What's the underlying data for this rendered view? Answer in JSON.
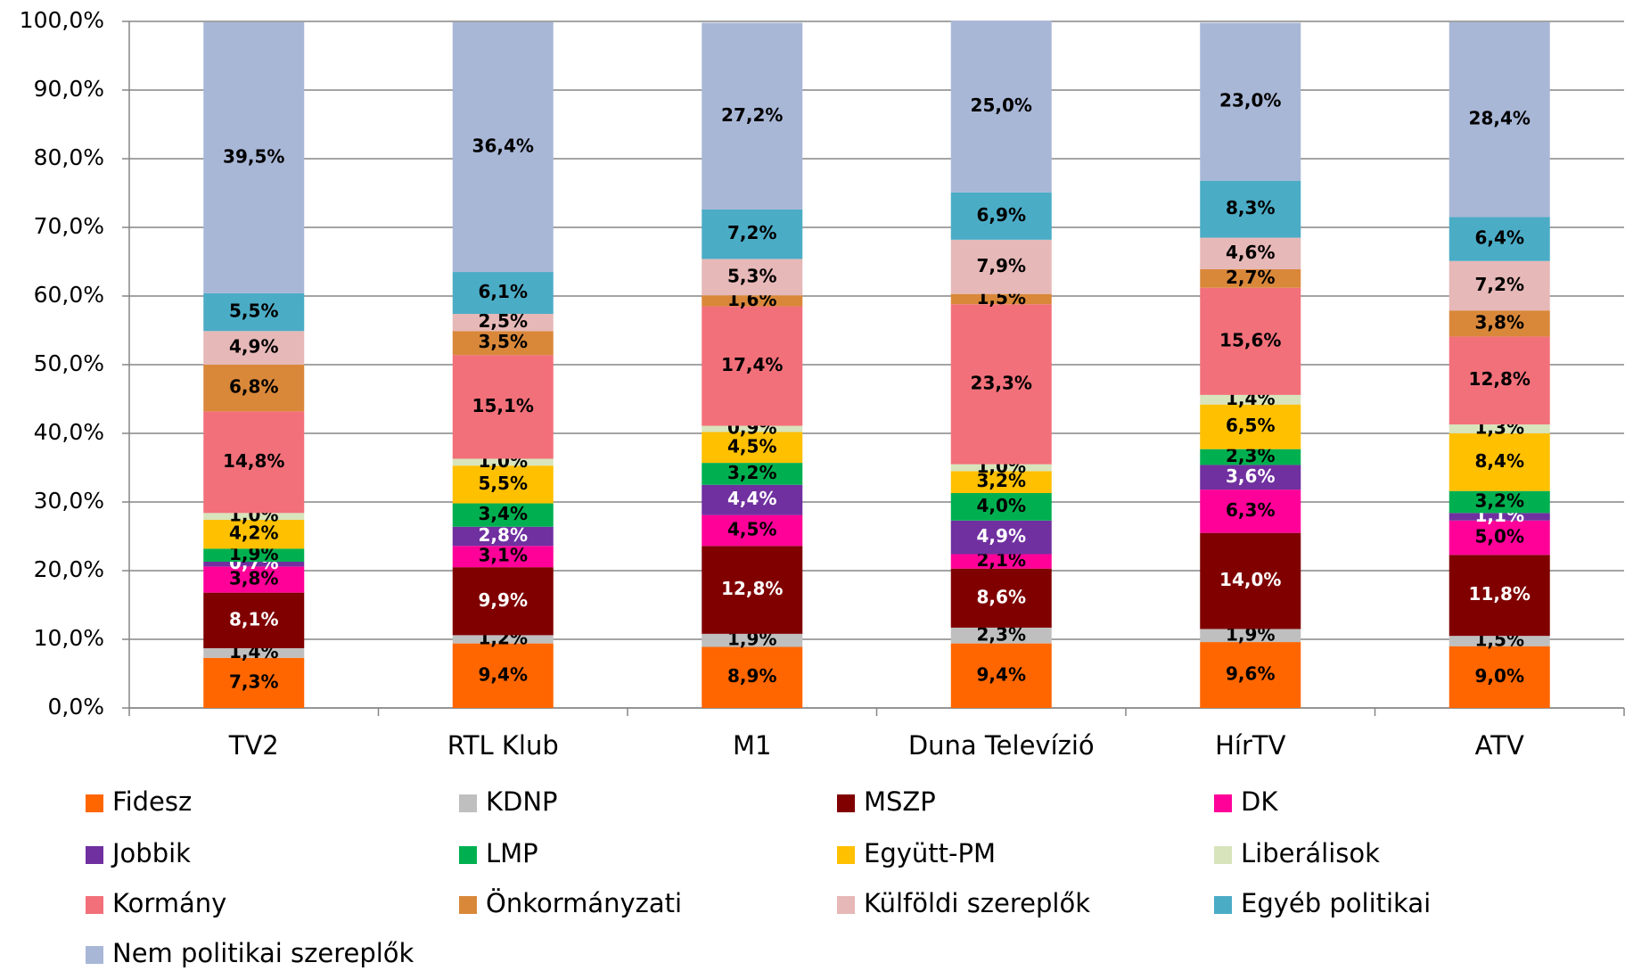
{
  "chart_data": {
    "type": "stacked_bar",
    "categories": [
      "TV2",
      "RTL Klub",
      "M1",
      "Duna Televízió",
      "HírTV",
      "ATV"
    ],
    "ylim": [
      0,
      100
    ],
    "yticks": [
      {
        "value": 0,
        "label": "0,0%"
      },
      {
        "value": 10,
        "label": "10,0%"
      },
      {
        "value": 20,
        "label": "20,0%"
      },
      {
        "value": 30,
        "label": "30,0%"
      },
      {
        "value": 40,
        "label": "40,0%"
      },
      {
        "value": 50,
        "label": "50,0%"
      },
      {
        "value": 60,
        "label": "60,0%"
      },
      {
        "value": 70,
        "label": "70,0%"
      },
      {
        "value": 80,
        "label": "80,0%"
      },
      {
        "value": 90,
        "label": "90,0%"
      },
      {
        "value": 100,
        "label": "100,0%"
      }
    ],
    "grid": true,
    "legend": "bottom",
    "series": [
      {
        "name": "Fidesz",
        "color": "#ff6600",
        "values": [
          7.3,
          9.4,
          8.9,
          9.4,
          9.6,
          9.0
        ],
        "value_labels": [
          "7,3%",
          "9,4%",
          "8,9%",
          "9,4%",
          "9,6%",
          "9,0%"
        ]
      },
      {
        "name": "KDNP",
        "color": "#bfbfbf",
        "values": [
          1.4,
          1.2,
          1.9,
          2.3,
          1.9,
          1.5
        ],
        "value_labels": [
          "1,4%",
          "1,2%",
          "1,9%",
          "2,3%",
          "1,9%",
          "1,5%"
        ]
      },
      {
        "name": "MSZP",
        "color": "#800000",
        "values": [
          8.1,
          9.9,
          12.8,
          8.6,
          14.0,
          11.8
        ],
        "value_labels": [
          "8,1%",
          "9,9%",
          "12,8%",
          "8,6%",
          "14,0%",
          "11,8%"
        ]
      },
      {
        "name": "DK",
        "color": "#ff0099",
        "values": [
          3.8,
          3.1,
          4.5,
          2.1,
          6.3,
          5.0
        ],
        "value_labels": [
          "3,8%",
          "3,1%",
          "4,5%",
          "2,1%",
          "6,3%",
          "5,0%"
        ]
      },
      {
        "name": "Jobbik",
        "color": "#7030a0",
        "values": [
          0.7,
          2.8,
          4.4,
          4.9,
          3.6,
          1.1
        ],
        "value_labels": [
          "0,7%",
          "2,8%",
          "4,4%",
          "4,9%",
          "3,6%",
          "1,1%"
        ]
      },
      {
        "name": "LMP",
        "color": "#00b050",
        "values": [
          1.9,
          3.4,
          3.2,
          4.0,
          2.3,
          3.2
        ],
        "value_labels": [
          "1,9%",
          "3,4%",
          "3,2%",
          "4,0%",
          "2,3%",
          "3,2%"
        ]
      },
      {
        "name": "Együtt-PM",
        "color": "#ffc000",
        "values": [
          4.2,
          5.5,
          4.5,
          3.2,
          6.5,
          8.4
        ],
        "value_labels": [
          "4,2%",
          "5,5%",
          "4,5%",
          "3,2%",
          "6,5%",
          "8,4%"
        ]
      },
      {
        "name": "Liberálisok",
        "color": "#d8e4bc",
        "values": [
          1.0,
          1.0,
          0.9,
          1.0,
          1.4,
          1.3
        ],
        "value_labels": [
          "1,0%",
          "1,0%",
          "0,9%",
          "1,0%",
          "1,4%",
          "1,3%"
        ]
      },
      {
        "name": "Kormány",
        "color": "#f2707a",
        "values": [
          14.8,
          15.1,
          17.4,
          23.3,
          15.6,
          12.8
        ],
        "value_labels": [
          "14,8%",
          "15,1%",
          "17,4%",
          "23,3%",
          "15,6%",
          "12,8%"
        ]
      },
      {
        "name": "Önkormányzati",
        "color": "#d9883a",
        "values": [
          6.8,
          3.5,
          1.6,
          1.5,
          2.7,
          3.8
        ],
        "value_labels": [
          "6,8%",
          "3,5%",
          "1,6%",
          "1,5%",
          "2,7%",
          "3,8%"
        ]
      },
      {
        "name": "Külföldi szereplők",
        "color": "#e6b8b7",
        "values": [
          4.9,
          2.5,
          5.3,
          7.9,
          4.6,
          7.2
        ],
        "value_labels": [
          "4,9%",
          "2,5%",
          "5,3%",
          "7,9%",
          "4,6%",
          "7,2%"
        ]
      },
      {
        "name": "Egyéb politikai",
        "color": "#4bacc6",
        "values": [
          5.5,
          6.1,
          7.2,
          6.9,
          8.3,
          6.4
        ],
        "value_labels": [
          "5,5%",
          "6,1%",
          "7,2%",
          "6,9%",
          "8,3%",
          "6,4%"
        ]
      },
      {
        "name": "Nem politikai szereplők",
        "color": "#a9b7d7",
        "values": [
          39.5,
          36.4,
          27.2,
          25.0,
          23.0,
          28.4
        ],
        "value_labels": [
          "39,5%",
          "36,4%",
          "27,2%",
          "25,0%",
          "23,0%",
          "28,4%"
        ]
      }
    ]
  }
}
